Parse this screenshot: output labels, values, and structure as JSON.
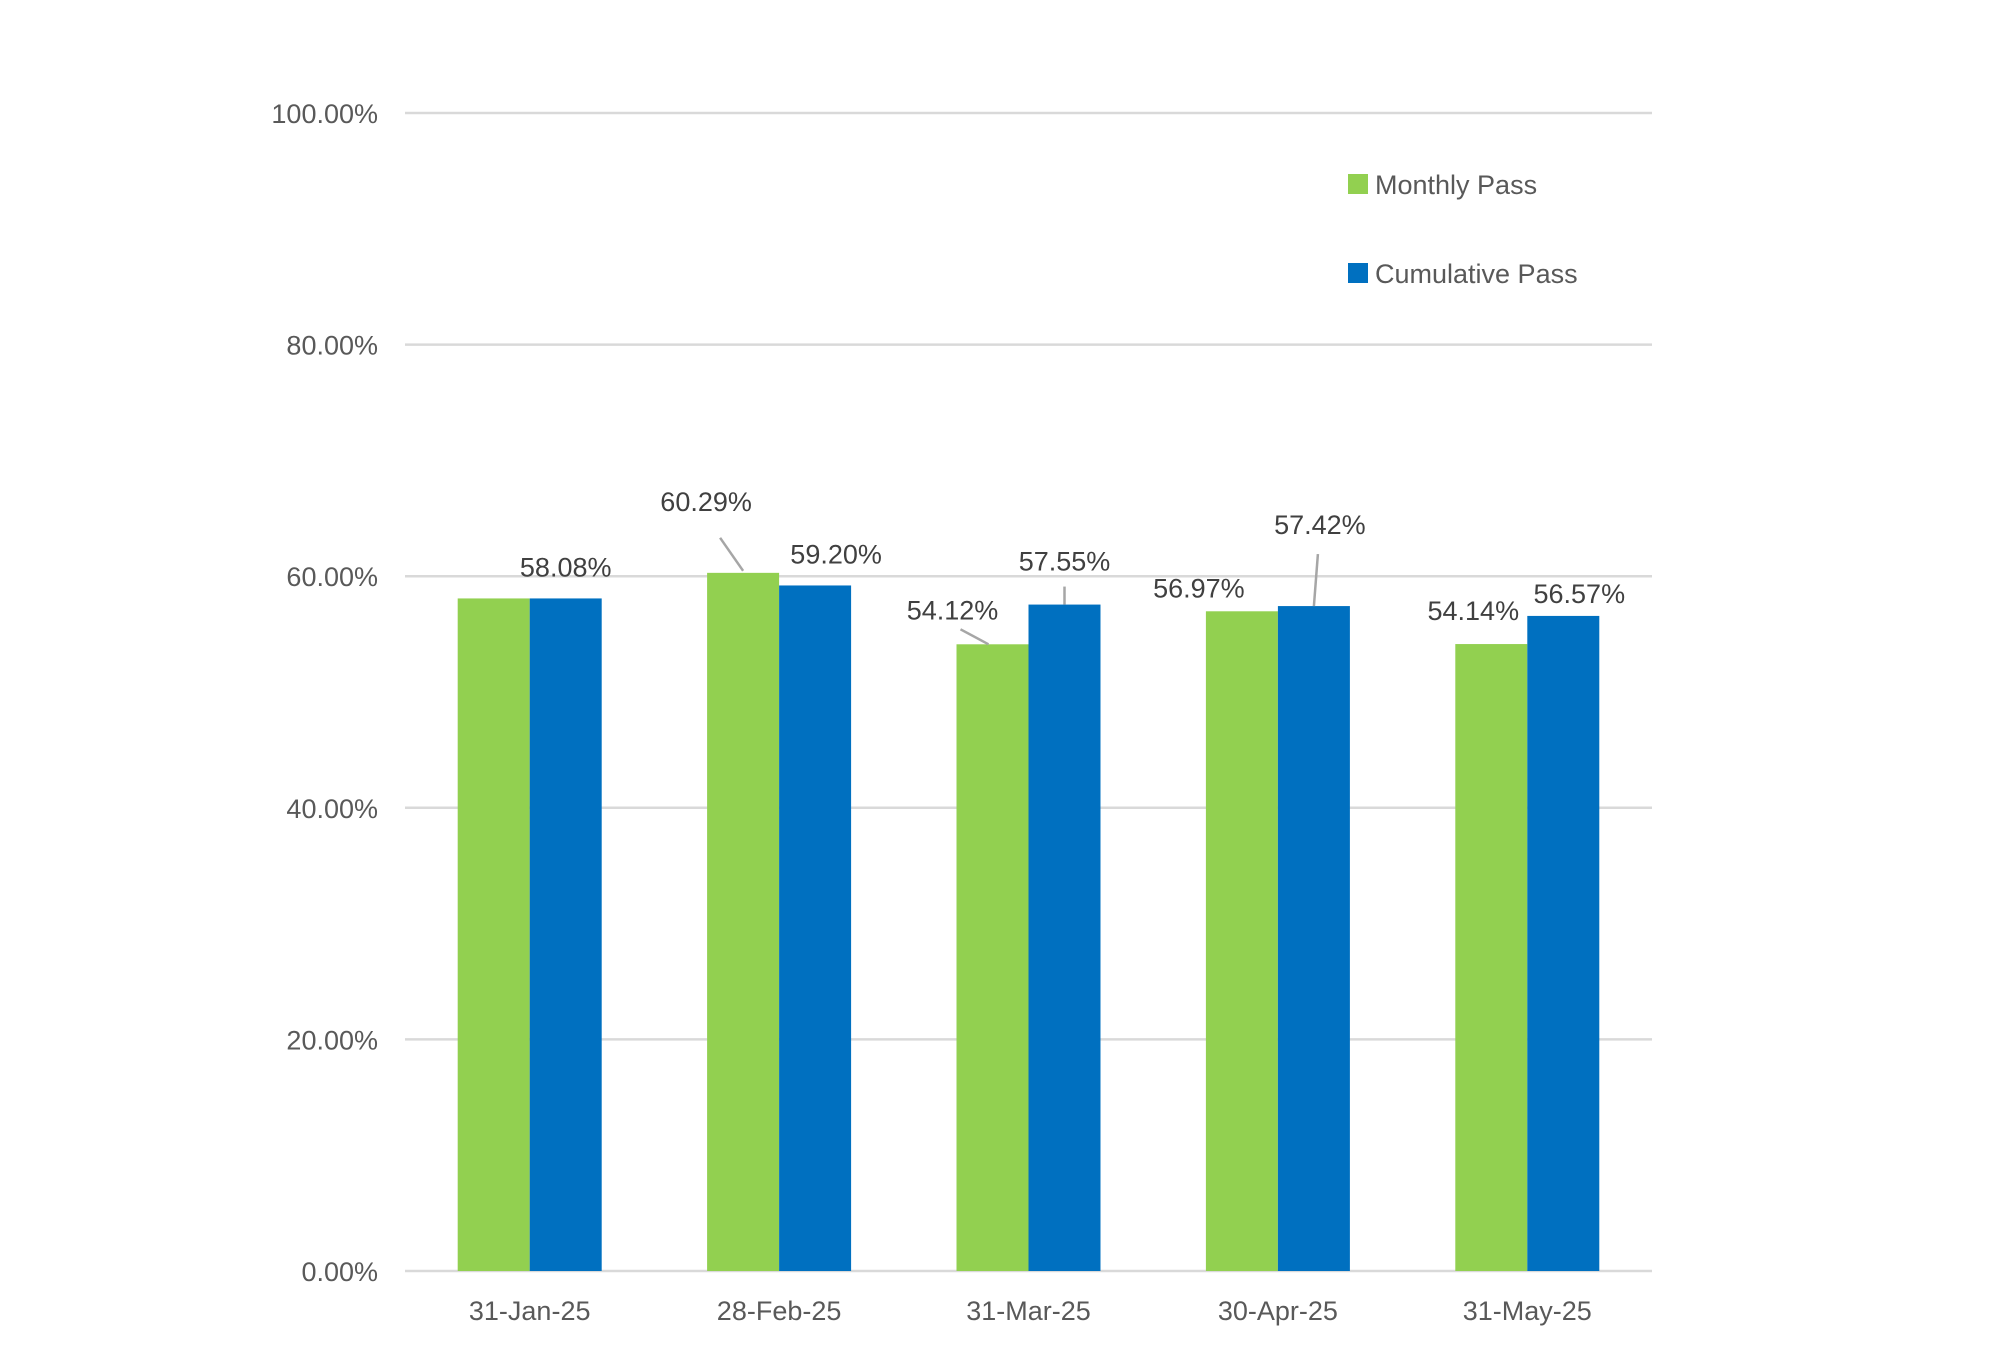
{
  "chart_data": {
    "type": "bar",
    "categories": [
      "31-Jan-25",
      "28-Feb-25",
      "31-Mar-25",
      "30-Apr-25",
      "31-May-25"
    ],
    "series": [
      {
        "name": "Monthly Pass",
        "color": "#92d050",
        "values": [
          58.08,
          60.29,
          54.12,
          56.97,
          54.14
        ],
        "labels": [
          "",
          "60.29%",
          "54.12%",
          "56.97%",
          "54.14%"
        ]
      },
      {
        "name": "Cumulative Pass",
        "color": "#0070c0",
        "values": [
          58.08,
          59.2,
          57.55,
          57.42,
          56.57
        ],
        "labels": [
          "58.08%",
          "59.20%",
          "57.55%",
          "57.42%",
          "56.57%"
        ]
      }
    ],
    "y_ticks": [
      0,
      20,
      40,
      60,
      80,
      100
    ],
    "y_tick_labels": [
      "0.00%",
      "20.00%",
      "40.00%",
      "60.00%",
      "80.00%",
      "100.00%"
    ],
    "ylim": [
      0,
      100
    ],
    "grid": true,
    "legend_position": "top-right"
  }
}
